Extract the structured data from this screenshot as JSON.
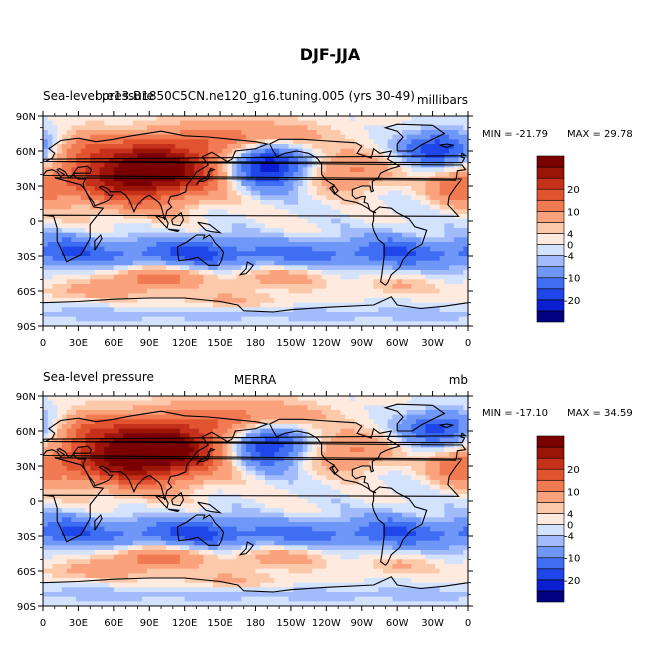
{
  "figure_title": "DJF-JJA",
  "colors": {
    "scale": [
      "#000080",
      "#0a1fd1",
      "#1e46e8",
      "#3f6ef2",
      "#6e97f7",
      "#a2bcfb",
      "#d3e2fd",
      "#ffeadf",
      "#fcc9ab",
      "#f9a27c",
      "#f27a52",
      "#e2532f",
      "#c5301a",
      "#9c1408",
      "#7a0000"
    ],
    "coast": "#000000"
  },
  "chart_data": [
    {
      "type": "heatmap",
      "title_left": "Sea-level pressure",
      "title_center": "b.e13.B1850C5CN.ne120_g16.tuning.005 (yrs 30-49)",
      "title_right": "millibars",
      "min_label": "MIN = -21.79",
      "max_label": "MAX = 29.78",
      "min": -21.79,
      "max": 29.78,
      "xlim": [
        0,
        360
      ],
      "ylim": [
        -90,
        90
      ],
      "x_ticks": [
        "0",
        "30E",
        "60E",
        "90E",
        "120E",
        "150E",
        "180",
        "150W",
        "120W",
        "90W",
        "60W",
        "30W",
        "0"
      ],
      "y_ticks": [
        "90N",
        "60N",
        "30N",
        "0",
        "30S",
        "60S",
        "90S"
      ],
      "colorbar_levels": [
        -24,
        -20,
        -16,
        -12,
        -10,
        -8,
        -4,
        -2,
        0,
        2,
        4,
        8,
        10,
        12,
        16,
        20,
        24
      ],
      "colorbar_labels": [
        "20",
        "10",
        "4",
        "0",
        "-4",
        "-10",
        "-20"
      ]
    },
    {
      "type": "heatmap",
      "title_left": "Sea-level pressure",
      "title_center": "MERRA",
      "title_right": "mb",
      "min_label": "MIN = -17.10",
      "max_label": "MAX = 34.59",
      "min": -17.1,
      "max": 34.59,
      "xlim": [
        0,
        360
      ],
      "ylim": [
        -90,
        90
      ],
      "x_ticks": [
        "0",
        "30E",
        "60E",
        "90E",
        "120E",
        "150E",
        "180",
        "150W",
        "120W",
        "90W",
        "60W",
        "30W",
        "0"
      ],
      "y_ticks": [
        "90N",
        "60N",
        "30N",
        "0",
        "30S",
        "60S",
        "90S"
      ],
      "colorbar_levels": [
        -24,
        -20,
        -16,
        -12,
        -10,
        -8,
        -4,
        -2,
        0,
        2,
        4,
        8,
        10,
        12,
        16,
        20,
        24
      ],
      "colorbar_labels": [
        "20",
        "10",
        "4",
        "0",
        "-4",
        "-10",
        "-20"
      ]
    }
  ]
}
